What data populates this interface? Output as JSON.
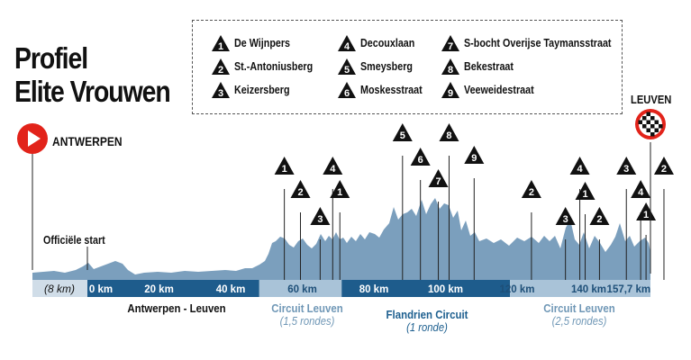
{
  "title": {
    "line1": "Profiel",
    "line2": "Elite Vrouwen"
  },
  "legend": [
    {
      "number": "1",
      "name": "De Wijnpers"
    },
    {
      "number": "2",
      "name": "St.-Antoniusberg"
    },
    {
      "number": "3",
      "name": "Keizersberg"
    },
    {
      "number": "4",
      "name": "Decouxlaan"
    },
    {
      "number": "5",
      "name": "Smeysberg"
    },
    {
      "number": "6",
      "name": "Moskesstraat"
    },
    {
      "number": "7",
      "name": "S-bocht Overijse Taymansstraat"
    },
    {
      "number": "8",
      "name": "Bekestraat"
    },
    {
      "number": "9",
      "name": "Veeweidestraat"
    }
  ],
  "start": {
    "label": "ANTWERPEN"
  },
  "finish": {
    "label": "LEUVEN"
  },
  "official_start": "Officiële start",
  "km_bar": {
    "lead": "(8 km)",
    "ticks": [
      {
        "label": "0 km",
        "km": 0
      },
      {
        "label": "20 km",
        "km": 20
      },
      {
        "label": "40 km",
        "km": 40
      },
      {
        "label": "60 km",
        "km": 60
      },
      {
        "label": "80 km",
        "km": 80
      },
      {
        "label": "100 km",
        "km": 100
      },
      {
        "label": "120 km",
        "km": 120
      },
      {
        "label": "140 km",
        "km": 140
      },
      {
        "label": "157,7 km",
        "km": 157.7
      }
    ]
  },
  "sections": [
    {
      "name": "Antwerpen - Leuven",
      "sub": ""
    },
    {
      "name": "Circuit Leuven",
      "sub": "(1,5 rondes)"
    },
    {
      "name": "Flandrien Circuit",
      "sub": "(1 ronde)"
    },
    {
      "name": "Circuit Leuven",
      "sub": "(2,5 rondes)"
    }
  ],
  "climb_markers": [
    {
      "number": "1",
      "km": 55
    },
    {
      "number": "2",
      "km": 59.5
    },
    {
      "number": "3",
      "km": 65
    },
    {
      "number": "4",
      "km": 68.5
    },
    {
      "number": "1",
      "km": 70.5
    },
    {
      "number": "5",
      "km": 88
    },
    {
      "number": "6",
      "km": 93
    },
    {
      "number": "7",
      "km": 98
    },
    {
      "number": "8",
      "km": 101
    },
    {
      "number": "9",
      "km": 108
    },
    {
      "number": "2",
      "km": 124
    },
    {
      "number": "3",
      "km": 133.5
    },
    {
      "number": "4",
      "km": 137.5
    },
    {
      "number": "1",
      "km": 139
    },
    {
      "number": "2",
      "km": 143
    },
    {
      "number": "3",
      "km": 150.5
    },
    {
      "number": "4",
      "km": 154.5
    },
    {
      "number": "1",
      "km": 156
    },
    {
      "number": "2",
      "km": 161
    }
  ],
  "colors": {
    "profile_fill": "#7b9fbd",
    "bar_dark": "#1e5c8c",
    "bar_light": "#a9c3d8",
    "bar_lead": "#d0dde8",
    "start_red": "#e2231a"
  }
}
